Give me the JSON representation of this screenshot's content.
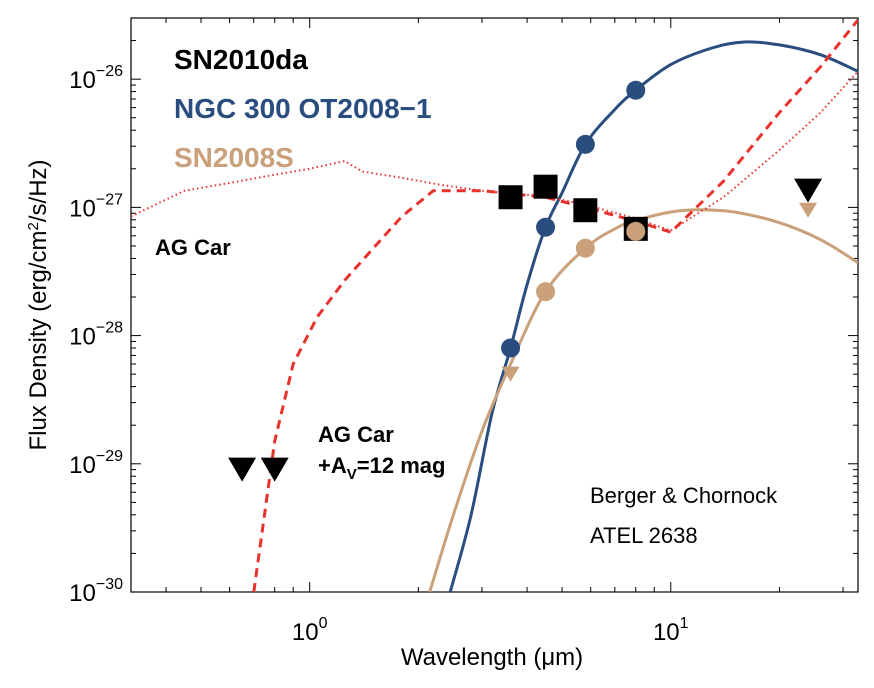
{
  "chart_data": {
    "type": "scatter",
    "xscale": "log",
    "yscale": "log",
    "xlabel_pre": "Wavelength  (",
    "xlabel_mu": "μ",
    "xlabel_post": "m)",
    "ylabel_pre": "Flux Density  (erg/cm",
    "ylabel_sup": "2",
    "ylabel_post": "/s/Hz)",
    "xlim": [
      0.32,
      33
    ],
    "ylim": [
      1e-30,
      3e-26
    ],
    "x_ticks": [
      {
        "value": 1,
        "base": "10",
        "exp": "0"
      },
      {
        "value": 10,
        "base": "10",
        "exp": "1"
      }
    ],
    "y_ticks": [
      {
        "value": 1e-30,
        "base": "10",
        "exp": "−30"
      },
      {
        "value": 1e-29,
        "base": "10",
        "exp": "−29"
      },
      {
        "value": 1e-28,
        "base": "10",
        "exp": "−28"
      },
      {
        "value": 1e-27,
        "base": "10",
        "exp": "−27"
      },
      {
        "value": 1e-26,
        "base": "10",
        "exp": "−26"
      }
    ],
    "colors": {
      "sn2010da": "#000000",
      "ngc300": "#2a4d7f",
      "sn2008s": "#c9a07a",
      "agcar": "#e8322c"
    },
    "legend": [
      {
        "key": "sn2010da",
        "label": "SN2010da"
      },
      {
        "key": "ngc300",
        "label": "NGC 300 OT2008−1"
      },
      {
        "key": "sn2008s",
        "label": "SN2008S"
      }
    ],
    "series": [
      {
        "name": "SN2010da",
        "key": "sn2010da",
        "marker": "square",
        "points": [
          [
            3.6,
            1.2e-27
          ],
          [
            4.5,
            1.45e-27
          ],
          [
            5.8,
            9.5e-28
          ],
          [
            8.0,
            6.8e-28
          ]
        ],
        "upper_limits": [
          [
            0.65,
            9e-30
          ],
          [
            0.8,
            9e-30
          ],
          [
            24,
            1.35e-27
          ]
        ]
      },
      {
        "name": "NGC 300 OT2008-1",
        "key": "ngc300",
        "marker": "circle",
        "points": [
          [
            3.6,
            8e-29
          ],
          [
            4.5,
            7e-28
          ],
          [
            5.8,
            3.1e-27
          ],
          [
            8.0,
            8.2e-27
          ]
        ],
        "upper_limits": [],
        "model_curve": [
          [
            2.45,
            1e-30
          ],
          [
            2.8,
            4e-30
          ],
          [
            3.2,
            2.5e-29
          ],
          [
            3.6,
            8e-29
          ],
          [
            4.0,
            2.5e-28
          ],
          [
            4.5,
            7e-28
          ],
          [
            5.0,
            1.3e-27
          ],
          [
            5.8,
            3.1e-27
          ],
          [
            7.0,
            5.8e-27
          ],
          [
            8.0,
            8.2e-27
          ],
          [
            10,
            1.3e-26
          ],
          [
            13,
            1.75e-26
          ],
          [
            16,
            1.95e-26
          ],
          [
            20,
            1.85e-26
          ],
          [
            26,
            1.55e-26
          ],
          [
            33,
            1.15e-26
          ]
        ]
      },
      {
        "name": "SN2008S",
        "key": "sn2008s",
        "marker": "circle",
        "points": [
          [
            4.5,
            2.2e-28
          ],
          [
            5.8,
            4.8e-28
          ],
          [
            8.0,
            6.5e-28
          ]
        ],
        "upper_limits": [
          [
            3.6,
            5e-29
          ],
          [
            24,
            9.5e-28
          ]
        ],
        "model_curve": [
          [
            2.15,
            1e-30
          ],
          [
            2.5,
            4e-30
          ],
          [
            3.0,
            1.8e-29
          ],
          [
            3.6,
            6e-29
          ],
          [
            4.5,
            2.2e-28
          ],
          [
            5.8,
            4.8e-28
          ],
          [
            7.0,
            6.8e-28
          ],
          [
            8.0,
            7.9e-28
          ],
          [
            10,
            9.2e-28
          ],
          [
            12,
            9.6e-28
          ],
          [
            15,
            9.2e-28
          ],
          [
            20,
            7.6e-28
          ],
          [
            26,
            5.6e-28
          ],
          [
            33,
            3.7e-28
          ]
        ]
      },
      {
        "name": "AG Car (dotted)",
        "key": "agcar",
        "line": "dotted",
        "curve": [
          [
            0.32,
            8.5e-28
          ],
          [
            0.45,
            1.35e-27
          ],
          [
            0.6,
            1.55e-27
          ],
          [
            0.8,
            1.8e-27
          ],
          [
            1.0,
            2e-27
          ],
          [
            1.25,
            2.3e-27
          ],
          [
            1.4,
            1.9e-27
          ],
          [
            1.8,
            1.7e-27
          ],
          [
            2.3,
            1.5e-27
          ],
          [
            3.0,
            1.35e-27
          ],
          [
            3.6,
            1.28e-27
          ],
          [
            4.5,
            1.22e-27
          ],
          [
            5.8,
            1.05e-27
          ],
          [
            8.0,
            8.2e-28
          ],
          [
            10,
            6.6e-28
          ],
          [
            14,
            1.2e-27
          ],
          [
            20,
            2.8e-27
          ],
          [
            26,
            5.5e-27
          ],
          [
            33,
            1.15e-26
          ]
        ]
      },
      {
        "name": "AG Car + Av=12 mag (dashed)",
        "key": "agcar",
        "line": "dashed",
        "curve": [
          [
            0.7,
            1e-30
          ],
          [
            0.8,
            1.5e-29
          ],
          [
            0.9,
            6e-29
          ],
          [
            1.05,
            1.4e-28
          ],
          [
            1.25,
            2.7e-28
          ],
          [
            1.5,
            4.8e-28
          ],
          [
            1.8,
            8.5e-28
          ],
          [
            2.2,
            1.35e-27
          ],
          [
            3.0,
            1.35e-27
          ],
          [
            3.6,
            1.28e-27
          ],
          [
            4.5,
            1.2e-27
          ],
          [
            5.8,
            1e-27
          ],
          [
            8.0,
            7.8e-28
          ],
          [
            10,
            6.4e-28
          ],
          [
            14,
            1.6e-27
          ],
          [
            20,
            5.5e-27
          ],
          [
            26,
            1.25e-26
          ],
          [
            33,
            2.9e-26
          ]
        ]
      }
    ],
    "annotations": {
      "agcar_label": "AG Car",
      "agcar_ext_line1": "AG Car",
      "agcar_ext_line2_pre": "+A",
      "agcar_ext_line2_sub": "V",
      "agcar_ext_line2_post": "=12 mag",
      "credit_line1": "Berger & Chornock",
      "credit_line2": "ATEL 2638"
    }
  }
}
